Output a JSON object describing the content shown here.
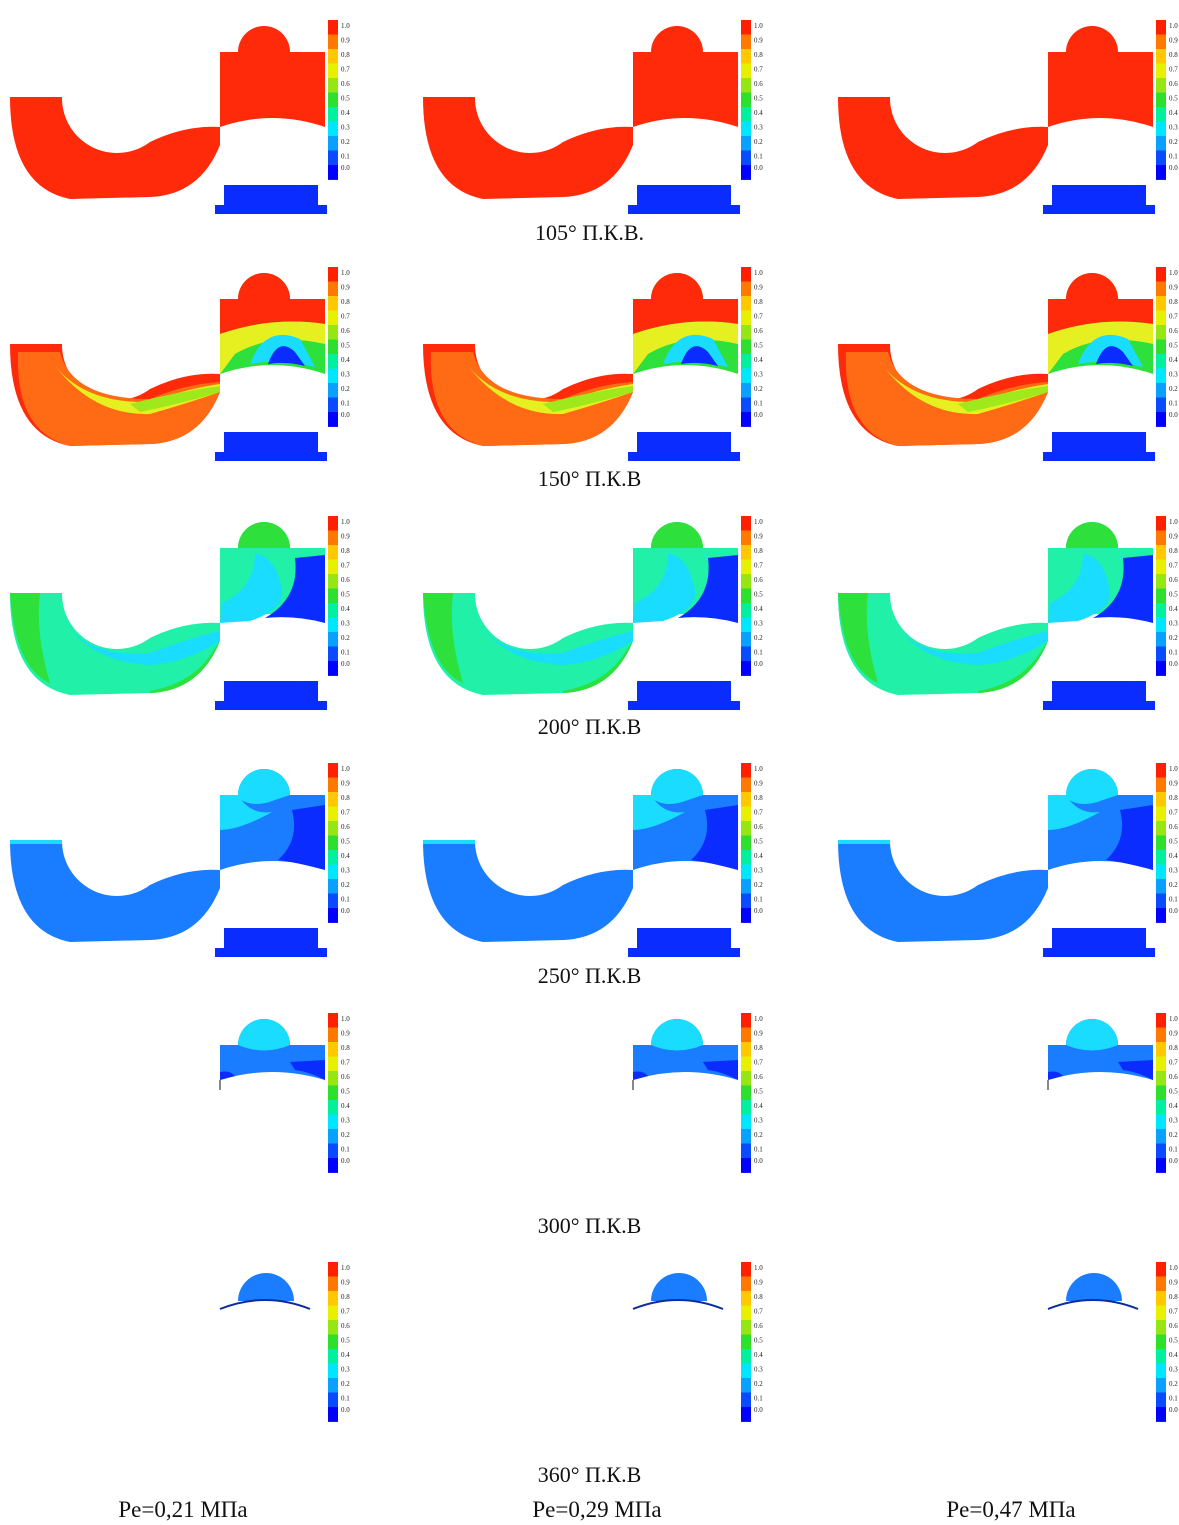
{
  "figure": {
    "colorbar": {
      "ticks": [
        "1.0",
        "0.9",
        "0.8",
        "0.7",
        "0.6",
        "0.5",
        "0.4",
        "0.3",
        "0.2",
        "0.1",
        "0.0"
      ],
      "colors": [
        "#0000ff",
        "#0a4bff",
        "#0aa0ff",
        "#00e6ff",
        "#00f0a0",
        "#2ee02e",
        "#96e614",
        "#e6f000",
        "#ffc800",
        "#ff7800",
        "#ff2000"
      ]
    },
    "rows": [
      {
        "caption": "105° П.К.В.",
        "state": "full-red"
      },
      {
        "caption": "150° П.К.В",
        "state": "mixing-warm"
      },
      {
        "caption": "200° П.К.В",
        "state": "mixing-green"
      },
      {
        "caption": "250° П.К.В",
        "state": "cool-blue"
      },
      {
        "caption": "300° П.К.В",
        "state": "dome-only"
      },
      {
        "caption": "360° П.К.В",
        "state": "dome-cap"
      }
    ],
    "columns": [
      {
        "caption": "Pe=0,21 МПа"
      },
      {
        "caption": "Pe=0,29 МПа"
      },
      {
        "caption": "Pe=0,47 МПа"
      }
    ],
    "palette": {
      "red": "#ff2a0a",
      "orange": "#ff6a14",
      "yellow": "#e6f020",
      "lime": "#9ee81c",
      "green": "#2ee03c",
      "teal": "#20f0a8",
      "cyan": "#19dcff",
      "lightblue": "#17a8ff",
      "blue": "#1a7cff",
      "darkblue": "#0a2cff"
    }
  }
}
